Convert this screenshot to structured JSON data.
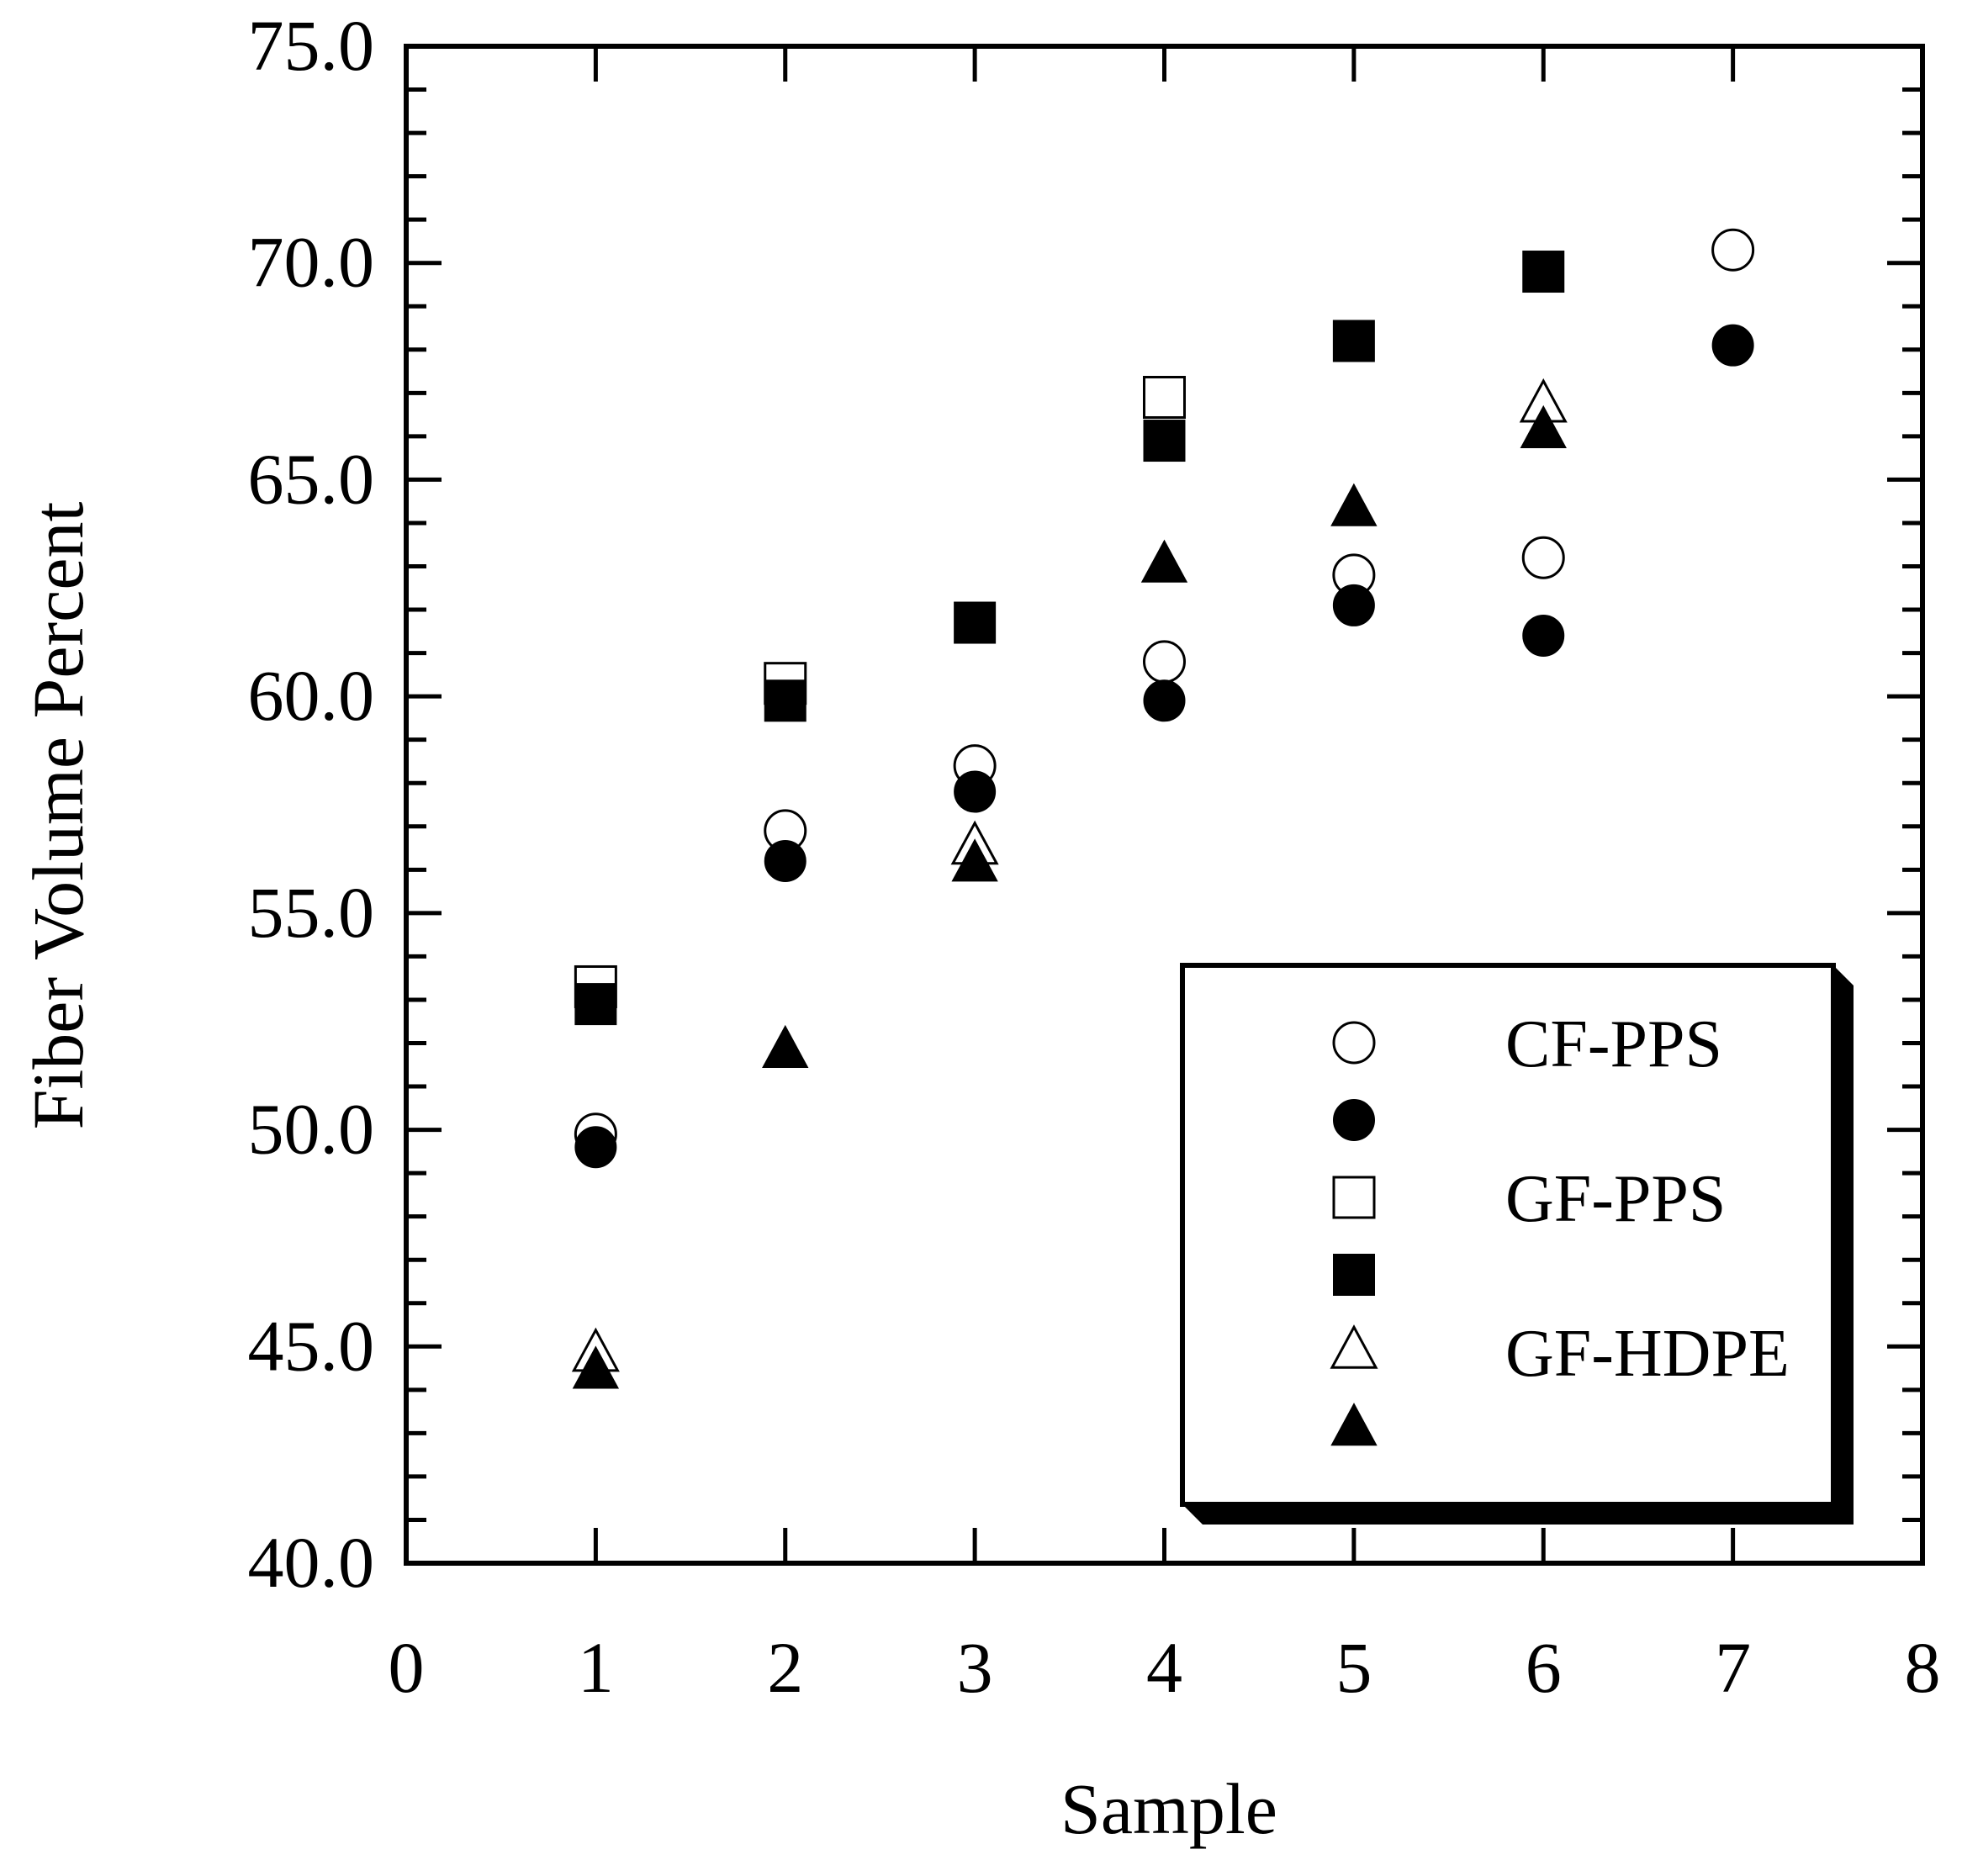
{
  "chart_data": {
    "type": "scatter",
    "title": "",
    "xlabel": "Sample",
    "ylabel": "Fiber Volume Percent",
    "xlim": [
      0,
      8
    ],
    "ylim": [
      40.0,
      75.0
    ],
    "x_ticks": [
      "0",
      "1",
      "2",
      "3",
      "4",
      "5",
      "6",
      "7",
      "8"
    ],
    "y_ticks": [
      "40.0",
      "45.0",
      "50.0",
      "55.0",
      "60.0",
      "65.0",
      "70.0",
      "75.0"
    ],
    "grid": false,
    "legend_position": "bottom-right",
    "legend_entries": [
      {
        "marker": "open-circle",
        "label": "CF-PPS"
      },
      {
        "marker": "filled-circle",
        "label": ""
      },
      {
        "marker": "open-square",
        "label": "GF-PPS"
      },
      {
        "marker": "filled-square",
        "label": ""
      },
      {
        "marker": "open-triangle",
        "label": "GF-HDPE"
      },
      {
        "marker": "filled-triangle",
        "label": ""
      }
    ],
    "series": [
      {
        "marker": "open-circle",
        "x": [
          1,
          2,
          3,
          4,
          5,
          6,
          7
        ],
        "y": [
          49.9,
          56.9,
          58.4,
          60.8,
          62.8,
          63.2,
          70.3
        ]
      },
      {
        "marker": "filled-circle",
        "x": [
          1,
          2,
          3,
          4,
          5,
          6,
          7
        ],
        "y": [
          49.6,
          56.2,
          57.8,
          59.9,
          62.1,
          61.4,
          68.1
        ]
      },
      {
        "marker": "open-square",
        "x": [
          1,
          2,
          4
        ],
        "y": [
          53.3,
          60.3,
          66.9
        ]
      },
      {
        "marker": "filled-square",
        "x": [
          1,
          2,
          3,
          4,
          5,
          6
        ],
        "y": [
          52.9,
          59.9,
          61.7,
          65.9,
          68.2,
          69.8
        ]
      },
      {
        "marker": "open-triangle",
        "x": [
          1,
          3,
          6
        ],
        "y": [
          44.8,
          56.5,
          66.7
        ]
      },
      {
        "marker": "filled-triangle",
        "x": [
          1,
          2,
          3,
          4,
          5,
          6
        ],
        "y": [
          44.4,
          51.8,
          56.1,
          63.0,
          64.3,
          66.1
        ]
      }
    ]
  }
}
